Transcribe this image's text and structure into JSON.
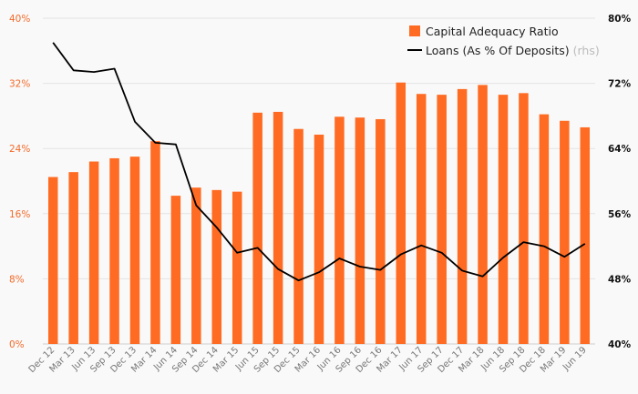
{
  "chart_data": {
    "type": "bar",
    "categories": [
      "Dec 12",
      "Mar 13",
      "Jun 13",
      "Sep 13",
      "Dec 13",
      "Mar 14",
      "Jun 14",
      "Sep 14",
      "Dec 14",
      "Mar 15",
      "Jun 15",
      "Sep 15",
      "Dec 15",
      "Mar 16",
      "Jun 16",
      "Sep 16",
      "Dec 16",
      "Mar 17",
      "Jun 17",
      "Sep 17",
      "Dec 17",
      "Mar 18",
      "Jun 18",
      "Sep 18",
      "Dec 18",
      "Mar 19",
      "Jun 19"
    ],
    "series": [
      {
        "name": "Capital Adequacy Ratio",
        "type": "bar",
        "axis": "left",
        "color": "#ff6b22",
        "values": [
          20.5,
          21.1,
          22.4,
          22.8,
          23.0,
          24.9,
          18.2,
          19.2,
          18.9,
          18.7,
          28.4,
          28.5,
          26.4,
          25.7,
          27.9,
          27.8,
          27.6,
          32.1,
          30.7,
          30.6,
          31.3,
          31.8,
          30.6,
          30.8,
          28.2,
          27.4,
          26.6
        ]
      },
      {
        "name": "Loans (As % Of Deposits)",
        "legend_suffix": "(rhs)",
        "type": "line",
        "axis": "right",
        "color": "#000000",
        "values": [
          77.0,
          73.6,
          73.4,
          73.8,
          67.3,
          64.7,
          64.5,
          57.0,
          54.3,
          51.2,
          51.8,
          49.2,
          47.8,
          48.8,
          50.5,
          49.5,
          49.1,
          51.0,
          52.1,
          51.2,
          49.0,
          48.3,
          50.6,
          52.5,
          52.0,
          50.7,
          52.3
        ]
      }
    ],
    "y_left": {
      "min": 0,
      "max": 40,
      "ticks": [
        0,
        8,
        16,
        24,
        32,
        40
      ],
      "tick_labels": [
        "0%",
        "8%",
        "16%",
        "24%",
        "32%",
        "40%"
      ]
    },
    "y_right": {
      "min": 40,
      "max": 80,
      "ticks": [
        40,
        48,
        56,
        64,
        72,
        80
      ],
      "tick_labels": [
        "40%",
        "48%",
        "56%",
        "64%",
        "72%",
        "80%"
      ]
    },
    "grid": true,
    "legend_position": "top-right",
    "title": "",
    "xlabel": "",
    "ylabel": ""
  }
}
